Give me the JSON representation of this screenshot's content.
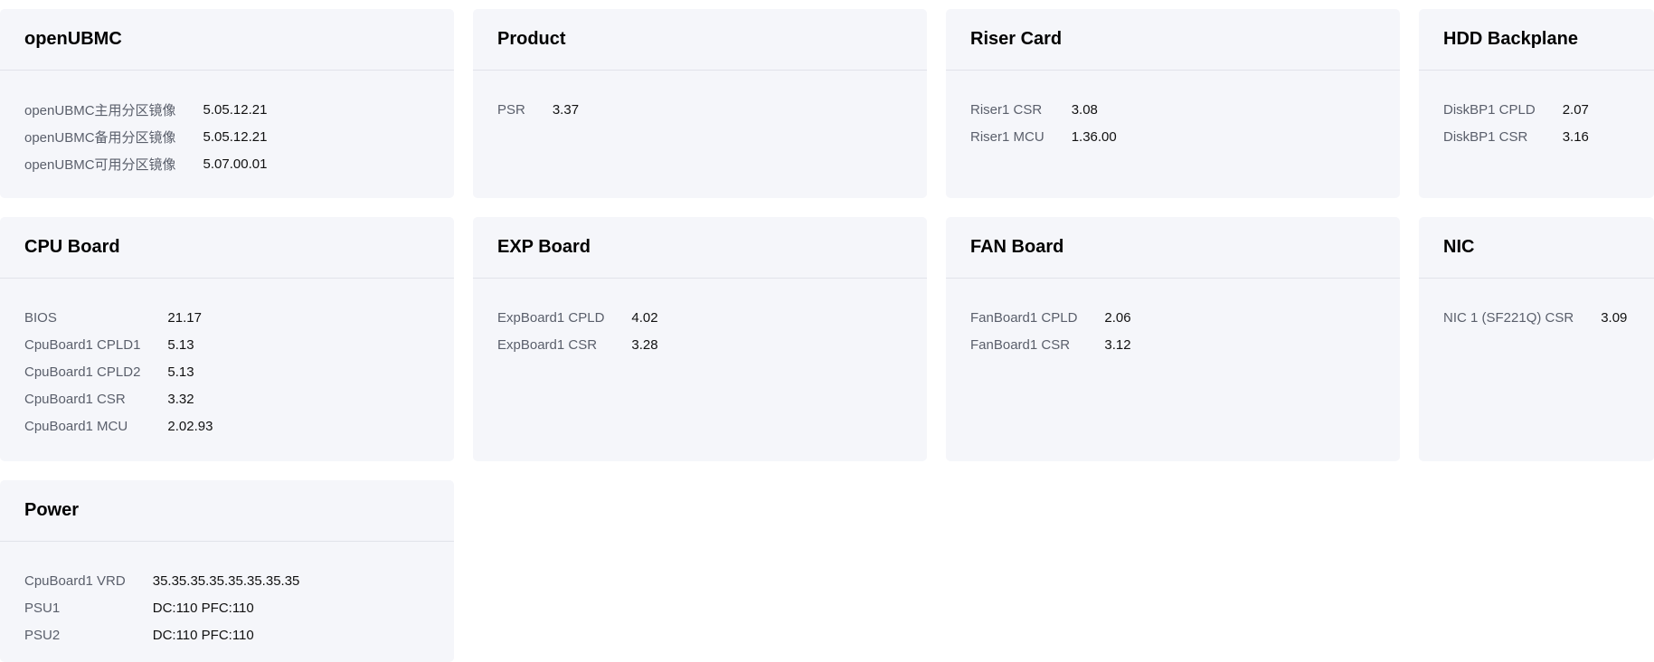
{
  "cards": [
    {
      "title": "openUBMC",
      "items": [
        {
          "label": "openUBMC主用分区镜像",
          "value": "5.05.12.21"
        },
        {
          "label": "openUBMC备用分区镜像",
          "value": "5.05.12.21"
        },
        {
          "label": "openUBMC可用分区镜像",
          "value": "5.07.00.01"
        }
      ]
    },
    {
      "title": "Product",
      "items": [
        {
          "label": "PSR",
          "value": "3.37"
        }
      ]
    },
    {
      "title": "Riser Card",
      "items": [
        {
          "label": "Riser1 CSR",
          "value": "3.08"
        },
        {
          "label": "Riser1 MCU",
          "value": "1.36.00"
        }
      ]
    },
    {
      "title": "HDD Backplane",
      "items": [
        {
          "label": "DiskBP1 CPLD",
          "value": "2.07"
        },
        {
          "label": "DiskBP1 CSR",
          "value": "3.16"
        }
      ]
    },
    {
      "title": "CPU Board",
      "items": [
        {
          "label": "BIOS",
          "value": "21.17"
        },
        {
          "label": "CpuBoard1 CPLD1",
          "value": "5.13"
        },
        {
          "label": "CpuBoard1 CPLD2",
          "value": "5.13"
        },
        {
          "label": "CpuBoard1 CSR",
          "value": "3.32"
        },
        {
          "label": "CpuBoard1 MCU",
          "value": "2.02.93"
        }
      ]
    },
    {
      "title": "EXP Board",
      "items": [
        {
          "label": "ExpBoard1 CPLD",
          "value": "4.02"
        },
        {
          "label": "ExpBoard1 CSR",
          "value": "3.28"
        }
      ]
    },
    {
      "title": "FAN Board",
      "items": [
        {
          "label": "FanBoard1 CPLD",
          "value": "2.06"
        },
        {
          "label": "FanBoard1 CSR",
          "value": "3.12"
        }
      ]
    },
    {
      "title": "NIC",
      "items": [
        {
          "label": "NIC 1 (SF221Q) CSR",
          "value": "3.09"
        }
      ]
    },
    {
      "title": "Power",
      "items": [
        {
          "label": "CpuBoard1 VRD",
          "value": "35.35.35.35.35.35.35.35"
        },
        {
          "label": "PSU1",
          "value": "DC:110 PFC:110"
        },
        {
          "label": "PSU2",
          "value": "DC:110 PFC:110"
        }
      ]
    }
  ]
}
